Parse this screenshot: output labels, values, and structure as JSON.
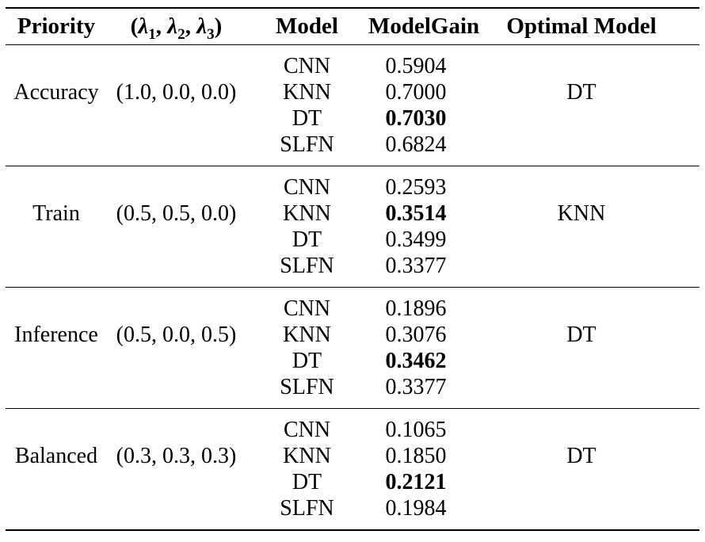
{
  "colors": {
    "text": "#000000",
    "rule": "#000000",
    "background": "#ffffff"
  },
  "table": {
    "headers": {
      "priority": "Priority",
      "lambda": {
        "open": "(",
        "sym1": "λ",
        "sub1": "1",
        "sep1": ", ",
        "sym2": "λ",
        "sub2": "2",
        "sep2": ", ",
        "sym3": "λ",
        "sub3": "3",
        "close": ")"
      },
      "model": "Model",
      "model_gain": "ModelGain",
      "optimal_model": "Optimal Model"
    },
    "groups": [
      {
        "priority": "Accuracy",
        "lambdas": "(1.0, 0.0, 0.0)",
        "optimal_model": "DT",
        "models": [
          {
            "name": "CNN",
            "gain": "0.5904",
            "best": false
          },
          {
            "name": "KNN",
            "gain": "0.7000",
            "best": false
          },
          {
            "name": "DT",
            "gain": "0.7030",
            "best": true
          },
          {
            "name": "SLFN",
            "gain": "0.6824",
            "best": false
          }
        ]
      },
      {
        "priority": "Train",
        "lambdas": "(0.5, 0.5, 0.0)",
        "optimal_model": "KNN",
        "models": [
          {
            "name": "CNN",
            "gain": "0.2593",
            "best": false
          },
          {
            "name": "KNN",
            "gain": "0.3514",
            "best": true
          },
          {
            "name": "DT",
            "gain": "0.3499",
            "best": false
          },
          {
            "name": "SLFN",
            "gain": "0.3377",
            "best": false
          }
        ]
      },
      {
        "priority": "Inference",
        "lambdas": "(0.5, 0.0, 0.5)",
        "optimal_model": "DT",
        "models": [
          {
            "name": "CNN",
            "gain": "0.1896",
            "best": false
          },
          {
            "name": "KNN",
            "gain": "0.3076",
            "best": false
          },
          {
            "name": "DT",
            "gain": "0.3462",
            "best": true
          },
          {
            "name": "SLFN",
            "gain": "0.3377",
            "best": false
          }
        ]
      },
      {
        "priority": "Balanced",
        "lambdas": "(0.3, 0.3, 0.3)",
        "optimal_model": "DT",
        "models": [
          {
            "name": "CNN",
            "gain": "0.1065",
            "best": false
          },
          {
            "name": "KNN",
            "gain": "0.1850",
            "best": false
          },
          {
            "name": "DT",
            "gain": "0.2121",
            "best": true
          },
          {
            "name": "SLFN",
            "gain": "0.1984",
            "best": false
          }
        ]
      }
    ]
  }
}
